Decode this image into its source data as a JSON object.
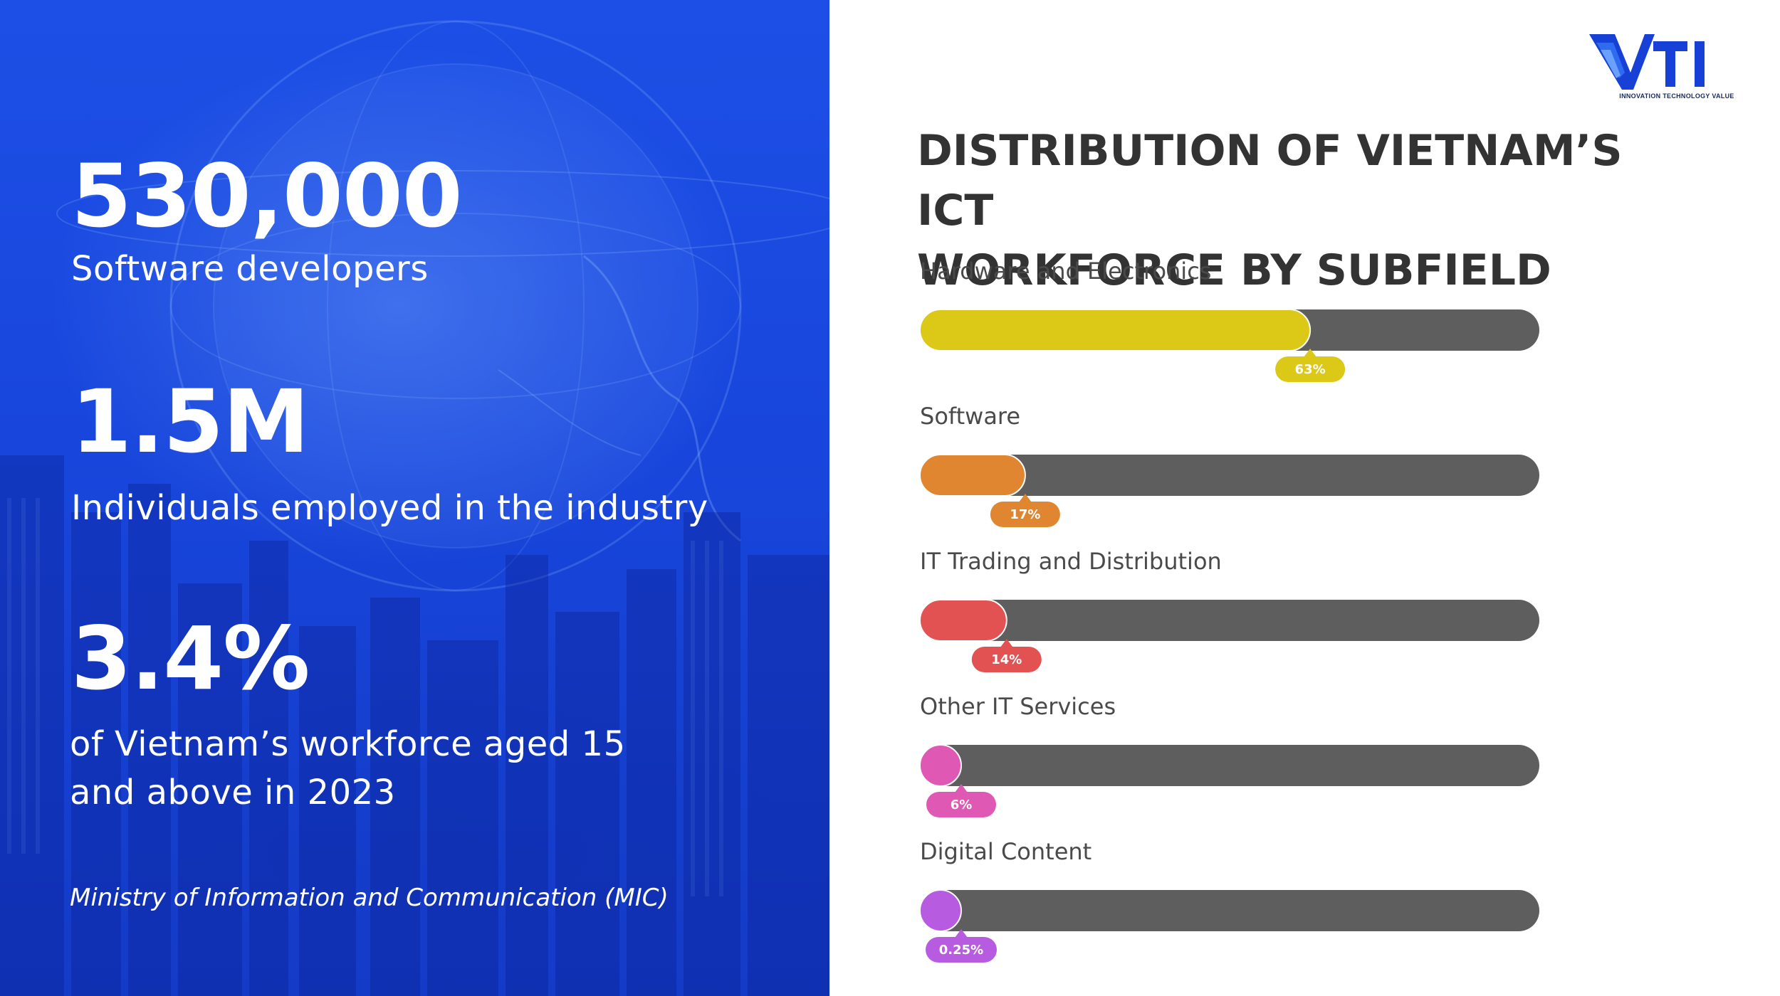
{
  "stats": [
    {
      "value": "530,000",
      "description": "Software developers"
    },
    {
      "value": "1.5M",
      "description": "Individuals employed in the industry"
    },
    {
      "value": "3.4%",
      "description_lines": [
        "of Vietnam’s workforce aged 15",
        "and above in 2023"
      ]
    }
  ],
  "source": "Ministry of Information and Communication (MIC)",
  "logo": {
    "text": "VTI",
    "tagline": "INNOVATION TECHNOLOGY VALUE",
    "color": "#1741d6"
  },
  "chart_data": {
    "type": "bar",
    "orientation": "horizontal",
    "title_lines": [
      "DISTRIBUTION OF VIETNAM’S ICT",
      "WORKFORCE BY SUBFIELD"
    ],
    "track_color": "#5e5e5e",
    "xlim": [
      0,
      100
    ],
    "categories": [
      "Hardware and Electronics",
      "Software",
      "IT Trading and Distribution",
      "Other IT Services",
      "Digital Content"
    ],
    "values": [
      63,
      17,
      14,
      6,
      0.25
    ],
    "value_labels": [
      "63%",
      "17%",
      "14%",
      "6%",
      "0.25%"
    ],
    "colors": [
      "#dcc817",
      "#e08530",
      "#e25252",
      "#de58b4",
      "#b75ce0"
    ]
  }
}
